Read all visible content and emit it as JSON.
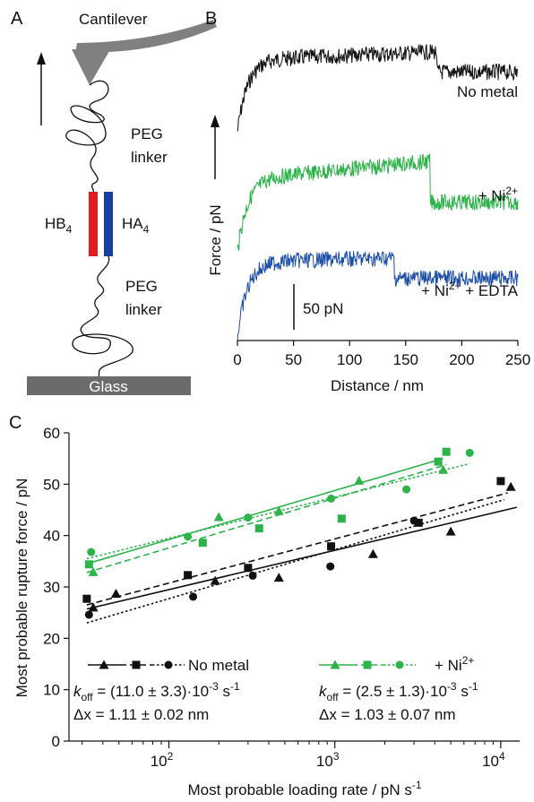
{
  "panel_a": {
    "panel_label": "A",
    "cantilever_label": "Cantilever",
    "peg_label_top_1": "PEG",
    "peg_label_top_2": "linker",
    "peg_label_bottom_1": "PEG",
    "peg_label_bottom_2": "linker",
    "hb4_label": "HB",
    "hb4_sub": "4",
    "ha4_label": "HA",
    "ha4_sub": "4",
    "glass_label": "Glass",
    "colors": {
      "hb4": "#e01b24",
      "ha4": "#1a3f9f",
      "cantilever": "#808080",
      "glass": "#6b6b6b"
    }
  },
  "panel_b": {
    "panel_label": "B",
    "ylabel": "Force / pN",
    "xlabel": "Distance / nm",
    "scale_bar_label": "50 pN",
    "xticks": [
      "0",
      "50",
      "100",
      "150",
      "200",
      "250"
    ],
    "traces": [
      {
        "label": "No metal",
        "color": "#111111",
        "rupture_nm": 178,
        "rupture_drop_pn": 22
      },
      {
        "label": "+ Ni",
        "sup": "2+",
        "color": "#2db34a",
        "rupture_nm": 172,
        "rupture_drop_pn": 45
      },
      {
        "label": "+ Ni",
        "sup": "2+",
        "suffix": " + EDTA",
        "color": "#1d4fa8",
        "rupture_nm": 140,
        "rupture_drop_pn": 22
      }
    ]
  },
  "chart_data": {
    "type": "scatter",
    "panel_label": "C",
    "xlabel": "Most probable loading rate / pN s",
    "xlabel_sup": "-1",
    "ylabel": "Most probable rupture force / pN",
    "xscale": "log",
    "xlim": [
      25,
      13000
    ],
    "ylim": [
      0,
      60
    ],
    "yticks": [
      "0",
      "10",
      "20",
      "30",
      "40",
      "50",
      "60"
    ],
    "xticks": [
      {
        "value": 100,
        "base": "10",
        "exp": "2"
      },
      {
        "value": 1000,
        "base": "10",
        "exp": "3"
      },
      {
        "value": 10000,
        "base": "10",
        "exp": "4"
      }
    ],
    "series": [
      {
        "group": "no_metal",
        "marker": "triangle",
        "line": "solid",
        "color": "#111111",
        "x": [
          35,
          48,
          190,
          460,
          1700,
          5000,
          11500
        ],
        "y": [
          26,
          28.7,
          31.2,
          31.8,
          36.4,
          40.8,
          49.5
        ],
        "fit": [
          [
            32,
            25.7
          ],
          [
            12500,
            45.5
          ]
        ]
      },
      {
        "group": "no_metal",
        "marker": "square",
        "line": "dashed",
        "color": "#111111",
        "x": [
          32,
          130,
          300,
          950,
          3200,
          10000
        ],
        "y": [
          27.7,
          32.3,
          33.7,
          37.9,
          42.5,
          50.6
        ],
        "fit": [
          [
            32,
            26.5
          ],
          [
            11000,
            48.3
          ]
        ]
      },
      {
        "group": "no_metal",
        "marker": "circle",
        "line": "dotted",
        "color": "#111111",
        "x": [
          33,
          140,
          320,
          940,
          3000
        ],
        "y": [
          24.6,
          28.1,
          32.2,
          34,
          42.9
        ],
        "fit": [
          [
            32,
            23
          ],
          [
            10500,
            47
          ]
        ]
      },
      {
        "group": "ni",
        "marker": "triangle",
        "line": "solid",
        "color": "#2db34a",
        "x": [
          35,
          200,
          460,
          1400,
          4500
        ],
        "y": [
          32.9,
          43.6,
          44.8,
          50.7,
          52.8
        ],
        "fit": [
          [
            32,
            34.5
          ],
          [
            4500,
            55
          ]
        ]
      },
      {
        "group": "ni",
        "marker": "square",
        "line": "dashed",
        "color": "#2db34a",
        "x": [
          33,
          160,
          350,
          1100,
          4200,
          4700
        ],
        "y": [
          34.4,
          38.6,
          41.4,
          43.3,
          54.4,
          56.3
        ],
        "fit": [
          [
            32,
            32.8
          ],
          [
            4700,
            53.8
          ]
        ]
      },
      {
        "group": "ni",
        "marker": "circle",
        "line": "dotted",
        "color": "#2db34a",
        "x": [
          34,
          130,
          300,
          950,
          2700,
          6500
        ],
        "y": [
          36.8,
          39.8,
          43.5,
          47.2,
          49,
          56.1
        ],
        "fit": [
          [
            32,
            35.5
          ],
          [
            6500,
            54
          ]
        ]
      }
    ],
    "legend": {
      "no_metal": {
        "label": "No metal",
        "color": "#111111",
        "koff_label": "k",
        "koff_sub": "off",
        "koff_value": " = (11.0 ± 3.3)·10",
        "koff_exp": "-3",
        "koff_unit": " s",
        "koff_unit_exp": "-1",
        "dx_label": "Δx = 1.11 ± 0.02 nm"
      },
      "ni": {
        "label": "+ Ni",
        "label_sup": "2+",
        "color": "#2db34a",
        "koff_label": "k",
        "koff_sub": "off",
        "koff_value": " = (2.5 ± 1.3)·10",
        "koff_exp": "-3",
        "koff_unit": " s",
        "koff_unit_exp": "-1",
        "dx_label": "Δx = 1.03 ± 0.07 nm"
      }
    }
  }
}
